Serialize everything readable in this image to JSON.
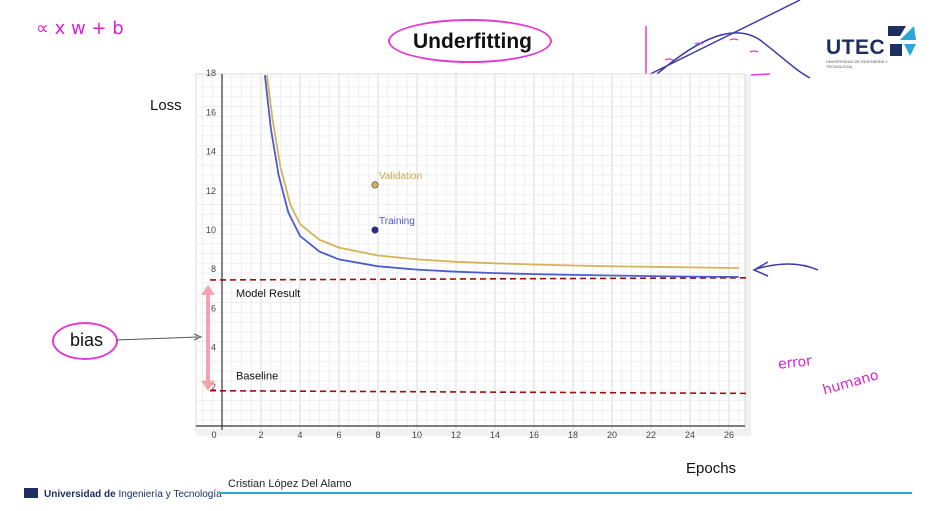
{
  "slide": {
    "title": "Underfitting",
    "author": "Cristian López Del Alamo",
    "university": {
      "bold": "Universidad de",
      "rest": " Ingeniería y Tecnología"
    },
    "logo": {
      "name": "UTEC",
      "subtitle": "UNIVERSIDAD DE INGENIERÍA Y TECNOLOGÍA"
    },
    "bias_label": "bias",
    "handwriting": {
      "top_left": "∝ x w + b",
      "bottom_right_1": "error",
      "bottom_right_2": "humano"
    }
  },
  "chart_data": {
    "type": "line",
    "xlabel": "Epochs",
    "ylabel": "Loss",
    "xlim": [
      0,
      27
    ],
    "ylim": [
      0,
      18
    ],
    "x_ticks": [
      0,
      2,
      4,
      6,
      8,
      10,
      12,
      14,
      16,
      18,
      20,
      22,
      24,
      26
    ],
    "y_ticks": [
      2,
      4,
      6,
      8,
      10,
      12,
      14,
      16,
      18
    ],
    "grid": true,
    "series": [
      {
        "name": "Validation",
        "color": "#d4b45a",
        "x": [
          2.3,
          2.6,
          3,
          3.5,
          4,
          5,
          6,
          8,
          10,
          12,
          14,
          16,
          18,
          20,
          22,
          24,
          26.5
        ],
        "y": [
          17.9,
          15.6,
          13.2,
          11.3,
          10.3,
          9.5,
          9.1,
          8.7,
          8.5,
          8.38,
          8.3,
          8.24,
          8.19,
          8.15,
          8.12,
          8.09,
          8.06
        ]
      },
      {
        "name": "Training",
        "color": "#4b5bd0",
        "x": [
          2.2,
          2.5,
          2.9,
          3.4,
          4,
          5,
          6,
          8,
          10,
          12,
          14,
          16,
          18,
          20,
          22,
          24,
          26.5
        ],
        "y": [
          17.9,
          15.2,
          12.8,
          10.9,
          9.7,
          8.9,
          8.5,
          8.15,
          7.98,
          7.87,
          7.8,
          7.75,
          7.71,
          7.68,
          7.65,
          7.62,
          7.6
        ]
      }
    ],
    "legend_points": [
      {
        "name": "Validation",
        "x": 8,
        "y": 12.3,
        "color": "#d4b45a"
      },
      {
        "name": "Training",
        "x": 8,
        "y": 10,
        "color": "#2a2aa0"
      }
    ],
    "reference_lines": [
      {
        "label": "Model Result",
        "y": 7.45,
        "color": "#9a1010"
      },
      {
        "label": "Baseline",
        "y": 1.8,
        "color": "#9a1010"
      }
    ]
  }
}
